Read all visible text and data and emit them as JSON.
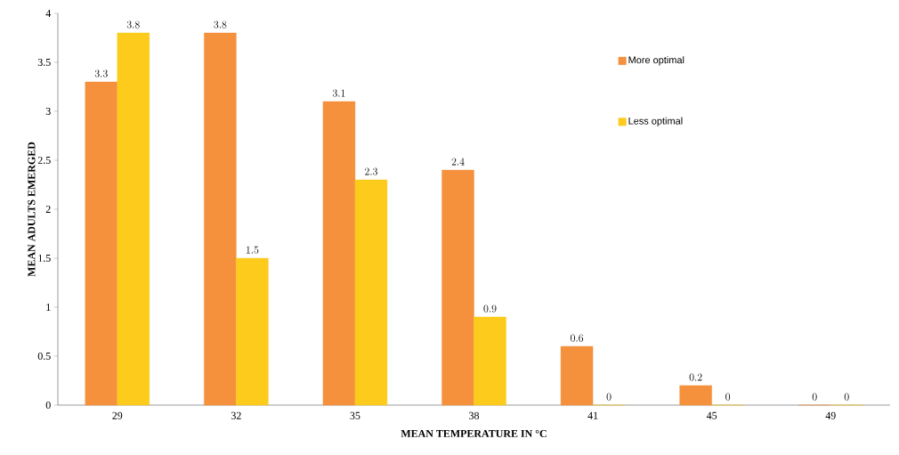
{
  "chart_data": {
    "type": "bar",
    "xlabel": "MEAN TEMPERATURE IN °C",
    "ylabel": "MEAN ADULTS EMERGED",
    "categories": [
      "29",
      "32",
      "35",
      "38",
      "41",
      "45",
      "49"
    ],
    "series": [
      {
        "name": "More optimal",
        "color": "#f5903c",
        "values": [
          3.3,
          3.8,
          3.1,
          2.4,
          0.6,
          0.2,
          0
        ]
      },
      {
        "name": "Less optimal",
        "color": "#fccb1c",
        "values": [
          3.8,
          1.5,
          2.3,
          0.9,
          0,
          0,
          0
        ]
      }
    ],
    "ylim": [
      0,
      4
    ],
    "yticks": [
      0,
      0.5,
      1,
      1.5,
      2,
      2.5,
      3,
      3.5,
      4
    ],
    "data_labels": true,
    "legend": "top right",
    "grid": false
  }
}
